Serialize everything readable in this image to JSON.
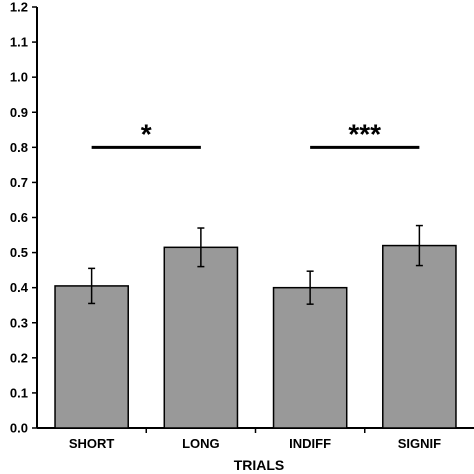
{
  "chart_data": {
    "type": "bar",
    "title": "",
    "xlabel": "TRIALS",
    "ylabel": "",
    "ylim": [
      0,
      1.2
    ],
    "yticks": [
      "0.0",
      "0.1",
      "0.2",
      "0.3",
      "0.4",
      "0.5",
      "0.6",
      "0.7",
      "0.8",
      "0.9",
      "1.0",
      "1.1",
      "1.2"
    ],
    "categories": [
      "SHORT",
      "LONG",
      "INDIFF",
      "SIGNIF"
    ],
    "values": [
      0.405,
      0.515,
      0.4,
      0.52
    ],
    "errors": [
      0.05,
      0.055,
      0.047,
      0.057
    ],
    "bar_color": "#999999",
    "grid": false,
    "significance": [
      {
        "from": 0,
        "to": 1,
        "y": 0.8,
        "label": "*"
      },
      {
        "from": 2,
        "to": 3,
        "y": 0.8,
        "label": "***"
      }
    ]
  }
}
